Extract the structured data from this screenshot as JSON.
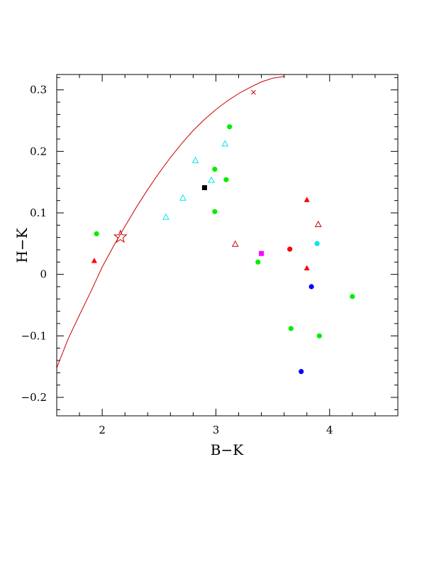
{
  "chart_data": {
    "type": "scatter",
    "title": "",
    "xlabel": "B−K",
    "ylabel": "H−K",
    "xlim": [
      1.6,
      4.6
    ],
    "ylim": [
      -0.23,
      0.325
    ],
    "grid": false,
    "x_ticks": [
      {
        "value": 2,
        "label": "2"
      },
      {
        "value": 3,
        "label": "3"
      },
      {
        "value": 4,
        "label": "4"
      }
    ],
    "y_ticks": [
      {
        "value": 0.3,
        "label": "0.3"
      },
      {
        "value": 0.2,
        "label": "0.2"
      },
      {
        "value": 0.1,
        "label": "0.1"
      },
      {
        "value": 0,
        "label": "0"
      },
      {
        "value": -0.1,
        "label": "−0.1"
      },
      {
        "value": -0.2,
        "label": "−0.2"
      }
    ],
    "colors": {
      "red": "#ff0000",
      "dark_red": "#cc0000",
      "green": "#00ee00",
      "cyan": "#00e5ee",
      "blue": "#0000ff",
      "magenta": "#ff00ff",
      "black": "#000000",
      "curve": "#cc0000"
    },
    "curve": {
      "color": "curve",
      "x": [
        1.6,
        1.7,
        1.8,
        1.9,
        2.0,
        2.1,
        2.2,
        2.3,
        2.4,
        2.5,
        2.6,
        2.7,
        2.8,
        2.9,
        3.0,
        3.1,
        3.2,
        3.3,
        3.4,
        3.5,
        3.6
      ],
      "y": [
        -0.152,
        -0.105,
        -0.066,
        -0.028,
        0.012,
        0.046,
        0.078,
        0.109,
        0.138,
        0.165,
        0.19,
        0.213,
        0.234,
        0.252,
        0.268,
        0.282,
        0.294,
        0.304,
        0.313,
        0.319,
        0.322
      ]
    },
    "special_points": [
      {
        "shape": "star",
        "color": "dark_red",
        "x": 2.16,
        "y": 0.061
      },
      {
        "shape": "cross",
        "color": "dark_red",
        "x": 3.33,
        "y": 0.296
      }
    ],
    "points": [
      {
        "shape": "circle",
        "color": "green",
        "x": 1.95,
        "y": 0.066
      },
      {
        "shape": "triangle",
        "color": "red",
        "x": 1.93,
        "y": 0.022
      },
      {
        "shape": "triangle-open",
        "color": "cyan",
        "x": 2.56,
        "y": 0.093
      },
      {
        "shape": "triangle-open",
        "color": "cyan",
        "x": 2.71,
        "y": 0.124
      },
      {
        "shape": "triangle-open",
        "color": "cyan",
        "x": 2.82,
        "y": 0.185
      },
      {
        "shape": "square",
        "color": "black",
        "x": 2.9,
        "y": 0.141
      },
      {
        "shape": "triangle-open",
        "color": "cyan",
        "x": 2.96,
        "y": 0.153
      },
      {
        "shape": "circle",
        "color": "green",
        "x": 2.99,
        "y": 0.171
      },
      {
        "shape": "circle",
        "color": "green",
        "x": 2.99,
        "y": 0.102
      },
      {
        "shape": "triangle-open",
        "color": "cyan",
        "x": 3.08,
        "y": 0.212
      },
      {
        "shape": "circle",
        "color": "green",
        "x": 3.12,
        "y": 0.24
      },
      {
        "shape": "circle",
        "color": "green",
        "x": 3.09,
        "y": 0.154
      },
      {
        "shape": "triangle-open",
        "color": "dark_red",
        "x": 3.17,
        "y": 0.049
      },
      {
        "shape": "square",
        "color": "magenta",
        "x": 3.4,
        "y": 0.034
      },
      {
        "shape": "circle",
        "color": "green",
        "x": 3.37,
        "y": 0.02
      },
      {
        "shape": "circle",
        "color": "red",
        "x": 3.65,
        "y": 0.041
      },
      {
        "shape": "triangle",
        "color": "red",
        "x": 3.8,
        "y": 0.121
      },
      {
        "shape": "triangle-open",
        "color": "dark_red",
        "x": 3.9,
        "y": 0.081
      },
      {
        "shape": "circle",
        "color": "cyan",
        "x": 3.89,
        "y": 0.05
      },
      {
        "shape": "triangle",
        "color": "red",
        "x": 3.8,
        "y": 0.01
      },
      {
        "shape": "circle",
        "color": "blue",
        "x": 3.84,
        "y": -0.02
      },
      {
        "shape": "circle",
        "color": "green",
        "x": 4.2,
        "y": -0.036
      },
      {
        "shape": "circle",
        "color": "green",
        "x": 3.66,
        "y": -0.088
      },
      {
        "shape": "circle",
        "color": "green",
        "x": 3.91,
        "y": -0.1
      },
      {
        "shape": "circle",
        "color": "blue",
        "x": 3.75,
        "y": -0.158
      }
    ]
  }
}
